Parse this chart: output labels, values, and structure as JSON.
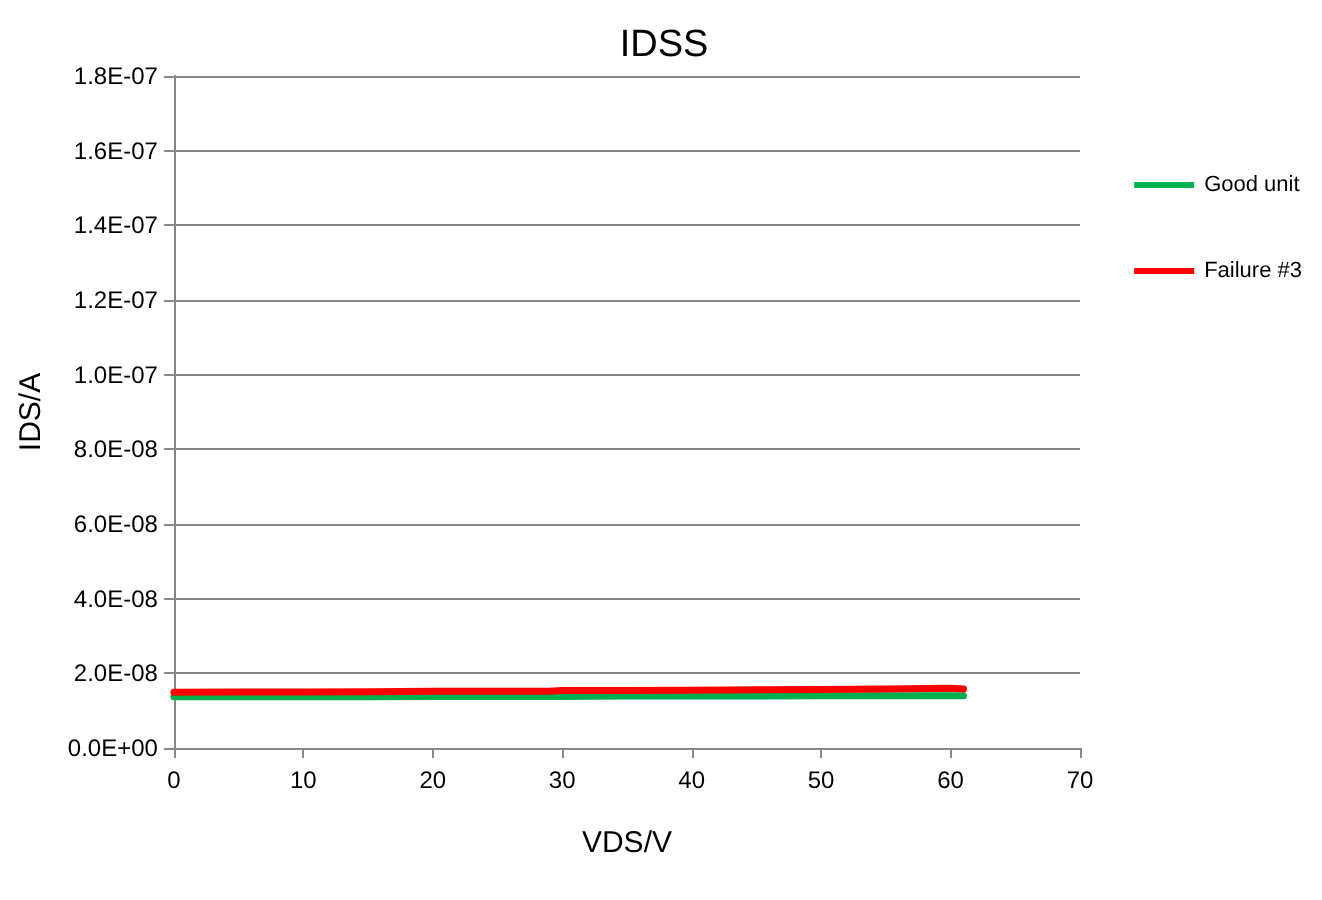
{
  "chart_data": {
    "type": "line",
    "title": "IDSS",
    "xlabel": "VDS/V",
    "ylabel": "IDS/A",
    "x": [
      0,
      5,
      10,
      15,
      20,
      25,
      29,
      30,
      35,
      40,
      45,
      50,
      55,
      60,
      61
    ],
    "series": [
      {
        "name": "Good unit",
        "color": "#00b050",
        "values": [
          1.37e-08,
          1.37e-08,
          1.37e-08,
          1.37e-08,
          1.38e-08,
          1.38e-08,
          1.38e-08,
          1.38e-08,
          1.39e-08,
          1.39e-08,
          1.39e-08,
          1.4e-08,
          1.4e-08,
          1.4e-08,
          1.4e-08
        ]
      },
      {
        "name": "Failure #3",
        "color": "#ff0000",
        "values": [
          1.49e-08,
          1.5e-08,
          1.5e-08,
          1.51e-08,
          1.52e-08,
          1.52e-08,
          1.52e-08,
          1.54e-08,
          1.54e-08,
          1.55e-08,
          1.56e-08,
          1.57e-08,
          1.58e-08,
          1.6e-08,
          1.58e-08
        ]
      }
    ],
    "xlim": [
      0,
      70
    ],
    "xticks": [
      0,
      10,
      20,
      30,
      40,
      50,
      60,
      70
    ],
    "ylim": [
      0,
      1.8e-07
    ],
    "yticks": [
      {
        "value": 0,
        "label": "0.0E+00"
      },
      {
        "value": 2e-08,
        "label": "2.0E-08"
      },
      {
        "value": 4e-08,
        "label": "4.0E-08"
      },
      {
        "value": 6e-08,
        "label": "6.0E-08"
      },
      {
        "value": 8e-08,
        "label": "8.0E-08"
      },
      {
        "value": 1e-07,
        "label": "1.0E-07"
      },
      {
        "value": 1.2e-07,
        "label": "1.2E-07"
      },
      {
        "value": 1.4e-07,
        "label": "1.4E-07"
      },
      {
        "value": 1.6e-07,
        "label": "1.6E-07"
      },
      {
        "value": 1.8e-07,
        "label": "1.8E-07"
      }
    ],
    "grid": "y",
    "legend": "right",
    "marker": "none",
    "line_style": "solid"
  }
}
